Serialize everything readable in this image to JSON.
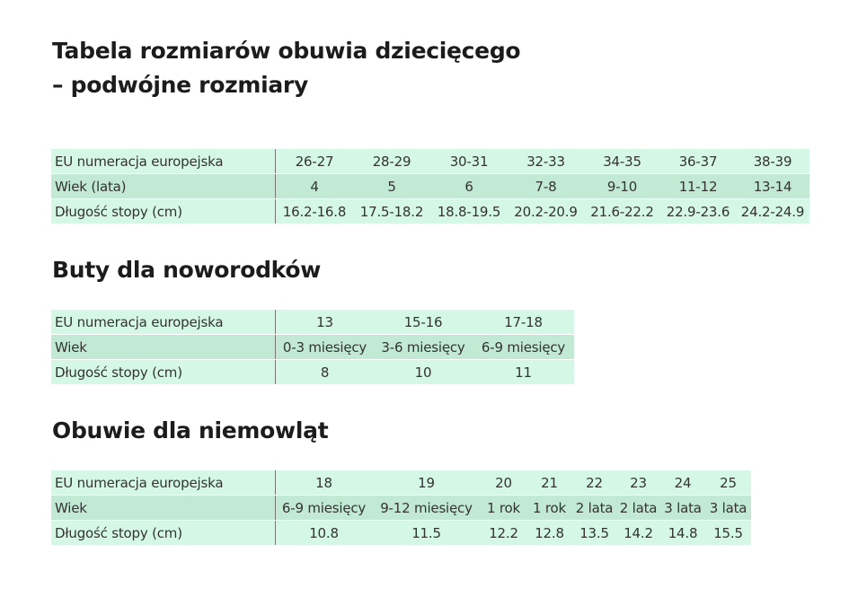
{
  "title_line1": "Tabela rozmiarów obuwia dziecięcego",
  "title_line2": "– podwójne rozmiary",
  "colors": {
    "row_light": "#d5f8e6",
    "row_mid": "#c1e9d3"
  },
  "tables": [
    {
      "heading": "",
      "rows": [
        {
          "label": "EU numeracja europejska",
          "values": [
            "26-27",
            "28-29",
            "30-31",
            "32-33",
            "34-35",
            "36-37",
            "38-39"
          ]
        },
        {
          "label": "Wiek (lata)",
          "values": [
            "4",
            "5",
            "6",
            "7-8",
            "9-10",
            "11-12",
            "13-14"
          ]
        },
        {
          "label": "Długość stopy (cm)",
          "values": [
            "16.2-16.8",
            "17.5-18.2",
            "18.8-19.5",
            "20.2-20.9",
            "21.6-22.2",
            "22.9-23.6",
            "24.2-24.9"
          ]
        }
      ]
    },
    {
      "heading": "Buty dla noworodków",
      "rows": [
        {
          "label": "EU numeracja europejska",
          "values": [
            "13",
            "15-16",
            "17-18"
          ]
        },
        {
          "label": "Wiek",
          "values": [
            "0-3 miesięcy",
            "3-6 miesięcy",
            "6-9 miesięcy"
          ]
        },
        {
          "label": "Długość stopy (cm)",
          "values": [
            "8",
            "10",
            "11"
          ]
        }
      ]
    },
    {
      "heading": "Obuwie dla niemowląt",
      "rows": [
        {
          "label": "EU numeracja europejska",
          "values": [
            "18",
            "19",
            "20",
            "21",
            "22",
            "23",
            "24",
            "25"
          ]
        },
        {
          "label": "Wiek",
          "values": [
            "6-9 miesięcy",
            "9-12 miesięcy",
            "1 rok",
            "1 rok",
            "2 lata",
            "2 lata",
            "3 lata",
            "3 lata"
          ]
        },
        {
          "label": "Długość stopy (cm)",
          "values": [
            "10.8",
            "11.5",
            "12.2",
            "12.8",
            "13.5",
            "14.2",
            "14.8",
            "15.5"
          ]
        }
      ]
    }
  ]
}
